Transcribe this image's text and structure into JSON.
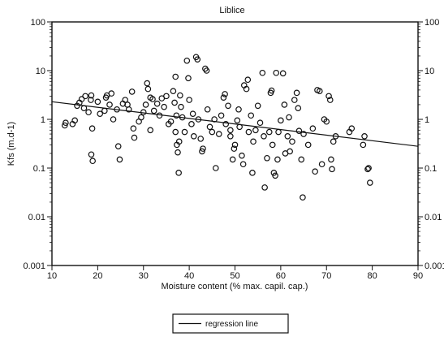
{
  "chart_data": {
    "type": "scatter",
    "title": "Liblice",
    "xlabel": "Moisture content (% max. capil. cap.)",
    "ylabel": "Kfs (m.d-1)",
    "xlim": [
      10,
      90
    ],
    "ylim": [
      0.001,
      100
    ],
    "yscale": "log",
    "grid": false,
    "x_ticks": [
      10,
      20,
      30,
      40,
      50,
      60,
      70,
      80,
      90
    ],
    "x_tick_labels": [
      "10",
      "20",
      "30",
      "40",
      "50",
      "60",
      "70",
      "80",
      "90"
    ],
    "y_ticks": [
      0.001,
      0.01,
      0.1,
      1,
      10,
      100
    ],
    "y_tick_labels": [
      "0.001",
      "0.01",
      "0.1",
      "1",
      "10",
      "100"
    ],
    "legend": {
      "position": "bottom-center",
      "entries": [
        "regression line"
      ]
    },
    "series": [
      {
        "kind": "points",
        "marker": "open-circle",
        "points": [
          [
            12.8,
            0.75
          ],
          [
            13.0,
            0.85
          ],
          [
            14.5,
            0.8
          ],
          [
            15.0,
            0.95
          ],
          [
            15.5,
            1.9
          ],
          [
            16.0,
            2.2
          ],
          [
            16.5,
            2.6
          ],
          [
            17.0,
            1.7
          ],
          [
            17.3,
            3.0
          ],
          [
            18.0,
            1.4
          ],
          [
            18.5,
            2.5
          ],
          [
            18.6,
            3.1
          ],
          [
            18.8,
            0.65
          ],
          [
            18.6,
            0.19
          ],
          [
            18.9,
            0.14
          ],
          [
            20.0,
            2.3
          ],
          [
            20.5,
            1.3
          ],
          [
            21.5,
            1.5
          ],
          [
            21.8,
            2.8
          ],
          [
            22.0,
            3.1
          ],
          [
            22.6,
            2.0
          ],
          [
            23.0,
            3.4
          ],
          [
            23.4,
            1.0
          ],
          [
            24.2,
            1.6
          ],
          [
            24.5,
            0.28
          ],
          [
            24.8,
            0.15
          ],
          [
            25.5,
            2.1
          ],
          [
            26.0,
            2.5
          ],
          [
            26.5,
            2.0
          ],
          [
            26.8,
            1.6
          ],
          [
            27.5,
            3.7
          ],
          [
            27.8,
            0.65
          ],
          [
            28.0,
            0.42
          ],
          [
            29.0,
            0.9
          ],
          [
            29.5,
            1.1
          ],
          [
            30.0,
            1.4
          ],
          [
            30.5,
            2.0
          ],
          [
            30.8,
            5.5
          ],
          [
            31.0,
            4.2
          ],
          [
            31.5,
            2.8
          ],
          [
            31.5,
            0.6
          ],
          [
            32.0,
            2.6
          ],
          [
            32.3,
            1.5
          ],
          [
            33.0,
            2.1
          ],
          [
            33.5,
            1.2
          ],
          [
            34.0,
            2.7
          ],
          [
            34.5,
            1.8
          ],
          [
            35.0,
            3.0
          ],
          [
            35.5,
            0.8
          ],
          [
            36.0,
            0.9
          ],
          [
            36.5,
            3.8
          ],
          [
            36.8,
            2.2
          ],
          [
            37.0,
            7.5
          ],
          [
            37.2,
            1.2
          ],
          [
            37.0,
            0.55
          ],
          [
            37.3,
            0.3
          ],
          [
            37.5,
            0.21
          ],
          [
            37.7,
            0.08
          ],
          [
            37.8,
            0.35
          ],
          [
            38.0,
            3.1
          ],
          [
            38.2,
            1.8
          ],
          [
            38.5,
            1.1
          ],
          [
            39.0,
            0.55
          ],
          [
            39.5,
            16.0
          ],
          [
            39.8,
            7.0
          ],
          [
            40.0,
            2.5
          ],
          [
            40.5,
            0.8
          ],
          [
            40.8,
            1.3
          ],
          [
            41.0,
            0.45
          ],
          [
            41.5,
            19.0
          ],
          [
            41.8,
            17.0
          ],
          [
            42.0,
            1.0
          ],
          [
            42.5,
            0.4
          ],
          [
            42.8,
            0.22
          ],
          [
            43.0,
            0.25
          ],
          [
            43.5,
            11.0
          ],
          [
            43.8,
            10.0
          ],
          [
            44.0,
            1.6
          ],
          [
            44.5,
            0.7
          ],
          [
            45.0,
            0.55
          ],
          [
            45.5,
            1.0
          ],
          [
            45.8,
            0.1
          ],
          [
            46.5,
            0.5
          ],
          [
            47.0,
            1.2
          ],
          [
            47.5,
            2.8
          ],
          [
            47.8,
            3.3
          ],
          [
            48.0,
            0.8
          ],
          [
            48.5,
            1.9
          ],
          [
            49.0,
            0.6
          ],
          [
            49.0,
            0.45
          ],
          [
            49.5,
            0.15
          ],
          [
            49.8,
            0.25
          ],
          [
            50.0,
            0.3
          ],
          [
            50.5,
            0.95
          ],
          [
            50.8,
            1.6
          ],
          [
            51.0,
            0.7
          ],
          [
            51.5,
            0.18
          ],
          [
            51.8,
            0.12
          ],
          [
            52.0,
            5.0
          ],
          [
            52.5,
            4.2
          ],
          [
            52.8,
            6.5
          ],
          [
            53.0,
            0.55
          ],
          [
            53.5,
            1.2
          ],
          [
            53.8,
            0.08
          ],
          [
            54.0,
            0.35
          ],
          [
            54.5,
            0.6
          ],
          [
            55.0,
            1.9
          ],
          [
            55.5,
            0.85
          ],
          [
            56.0,
            9.0
          ],
          [
            56.3,
            0.45
          ],
          [
            56.5,
            0.04
          ],
          [
            57.0,
            0.16
          ],
          [
            57.5,
            0.55
          ],
          [
            57.8,
            3.5
          ],
          [
            58.0,
            3.9
          ],
          [
            58.2,
            0.3
          ],
          [
            58.5,
            0.08
          ],
          [
            58.8,
            0.07
          ],
          [
            59.0,
            9.0
          ],
          [
            59.3,
            0.15
          ],
          [
            59.5,
            0.55
          ],
          [
            60.0,
            0.95
          ],
          [
            60.5,
            8.8
          ],
          [
            60.8,
            2.0
          ],
          [
            61.0,
            0.2
          ],
          [
            61.5,
            0.45
          ],
          [
            61.8,
            1.1
          ],
          [
            62.0,
            0.22
          ],
          [
            62.5,
            0.35
          ],
          [
            63.0,
            2.5
          ],
          [
            63.5,
            3.5
          ],
          [
            63.8,
            1.7
          ],
          [
            64.0,
            0.58
          ],
          [
            64.5,
            0.15
          ],
          [
            64.8,
            0.025
          ],
          [
            65.0,
            0.5
          ],
          [
            66.0,
            0.3
          ],
          [
            67.0,
            0.65
          ],
          [
            67.5,
            0.085
          ],
          [
            68.0,
            4.0
          ],
          [
            68.5,
            3.8
          ],
          [
            69.0,
            0.12
          ],
          [
            69.5,
            1.0
          ],
          [
            70.0,
            0.9
          ],
          [
            70.5,
            3.0
          ],
          [
            70.8,
            2.5
          ],
          [
            71.0,
            0.15
          ],
          [
            71.2,
            0.095
          ],
          [
            71.5,
            0.35
          ],
          [
            72.0,
            0.45
          ],
          [
            75.0,
            0.55
          ],
          [
            75.5,
            0.65
          ],
          [
            78.0,
            0.3
          ],
          [
            78.3,
            0.45
          ],
          [
            79.0,
            0.095
          ],
          [
            79.2,
            0.1
          ],
          [
            79.5,
            0.05
          ]
        ]
      },
      {
        "kind": "line",
        "name": "regression line",
        "points": [
          [
            10,
            2.3
          ],
          [
            90,
            0.28
          ]
        ]
      }
    ]
  }
}
